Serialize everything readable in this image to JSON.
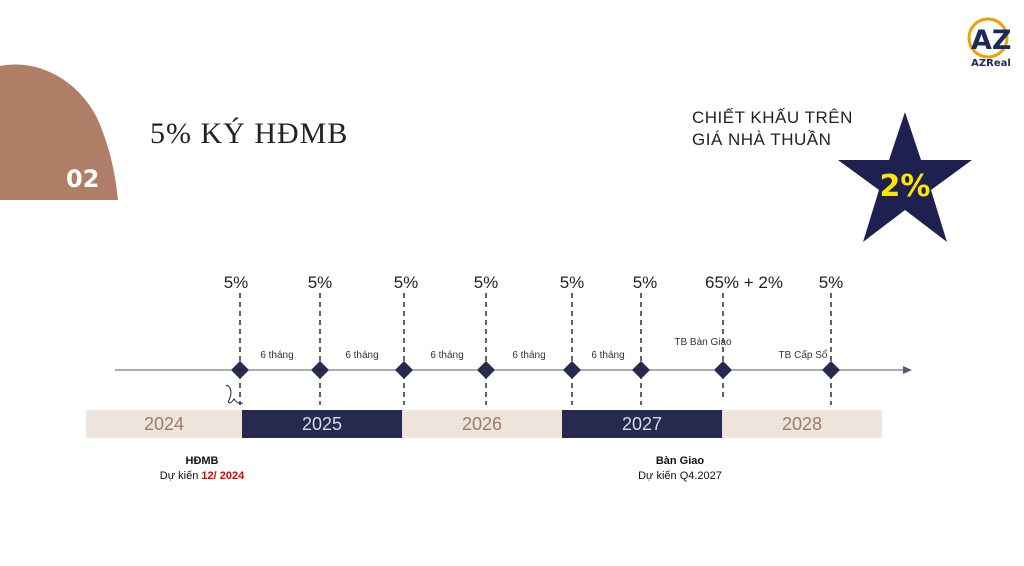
{
  "slide": {
    "number": "02",
    "title": "5% KÝ HĐMB"
  },
  "logo": {
    "mark": "AZ",
    "text": "AZReal"
  },
  "discount": {
    "line1": "CHIẾT KHẤU TRÊN",
    "line2": "GIÁ NHÀ THUẦN",
    "value": "2%"
  },
  "milestones": [
    {
      "pct": "5%"
    },
    {
      "pct": "5%"
    },
    {
      "pct": "5%"
    },
    {
      "pct": "5%"
    },
    {
      "pct": "5%"
    },
    {
      "pct": "5%"
    },
    {
      "pct": "65% + 2%"
    },
    {
      "pct": "5%"
    }
  ],
  "intervals": [
    "6 tháng",
    "6 tháng",
    "6 tháng",
    "6 tháng",
    "6 tháng"
  ],
  "events": [
    "TB Bàn Giao",
    "TB Cấp Sổ"
  ],
  "years": [
    "2024",
    "2025",
    "2026",
    "2027",
    "2028"
  ],
  "notes": {
    "signing": {
      "title": "HĐMB",
      "prefix": "Dự kiến ",
      "date": "12/ 2024"
    },
    "handover": {
      "title": "Bàn Giao",
      "prefix": "Dự kiến Q4.2027"
    }
  },
  "colors": {
    "accent": "#b07e67",
    "navy": "#272a4f",
    "star": "#1e2150",
    "highlight": "#ffe600",
    "red": "#e10000"
  }
}
